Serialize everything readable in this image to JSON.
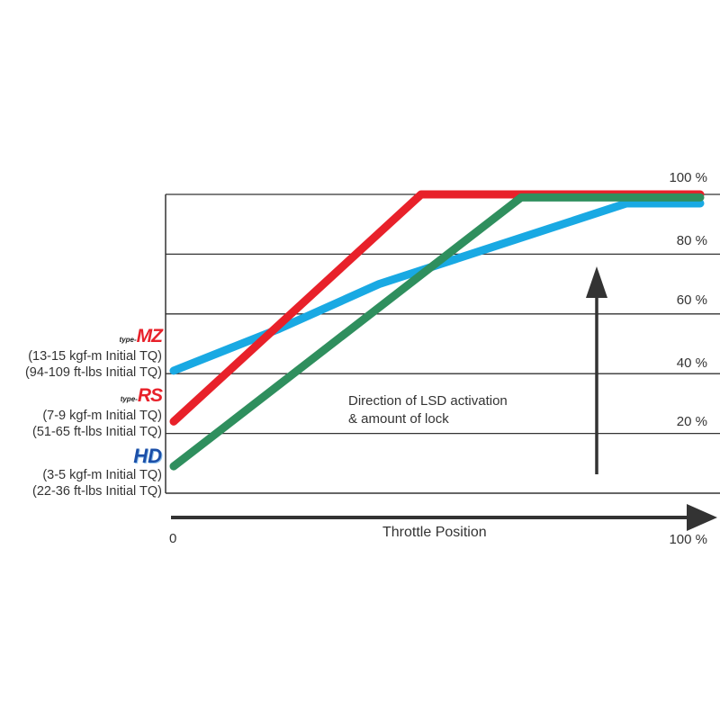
{
  "chart_data": {
    "type": "line",
    "title": "",
    "xlabel": "Throttle Position",
    "ylabel": "",
    "xlim": [
      0,
      100
    ],
    "ylim": [
      0,
      100
    ],
    "x_tick_labels": [
      "0",
      "100 %"
    ],
    "y_tick_labels": [
      "20 %",
      "40 %",
      "60 %",
      "80 %",
      "100 %"
    ],
    "y_ticks": [
      20,
      40,
      60,
      80,
      100
    ],
    "grid": true,
    "annotation": {
      "line1": "Direction of LSD activation",
      "line2": "& amount of lock"
    },
    "series": [
      {
        "name": "type-MZ",
        "color": "#19a9e3",
        "points": [
          [
            0,
            41
          ],
          [
            20,
            55
          ],
          [
            39,
            70
          ],
          [
            86,
            97
          ],
          [
            100,
            97
          ]
        ]
      },
      {
        "name": "type-RS",
        "color": "#e8212a",
        "points": [
          [
            0,
            24
          ],
          [
            47,
            100
          ],
          [
            100,
            100
          ]
        ]
      },
      {
        "name": "HD",
        "color": "#2f8f5e",
        "points": [
          [
            0,
            9
          ],
          [
            66,
            99
          ],
          [
            100,
            99
          ]
        ]
      }
    ]
  },
  "legend": [
    {
      "logo_prefix": "type-",
      "logo": "MZ",
      "line1": "(13-15 kgf-m Initial TQ)",
      "line2": "(94-109 ft-lbs Initial TQ)"
    },
    {
      "logo_prefix": "type-",
      "logo": "RS",
      "line1": "(7-9 kgf-m Initial TQ)",
      "line2": "(51-65 ft-lbs Initial TQ)"
    },
    {
      "logo_prefix": "",
      "logo": "HD",
      "line1": "(3-5 kgf-m Initial TQ)",
      "line2": "(22-36 ft-lbs Initial TQ)"
    }
  ]
}
